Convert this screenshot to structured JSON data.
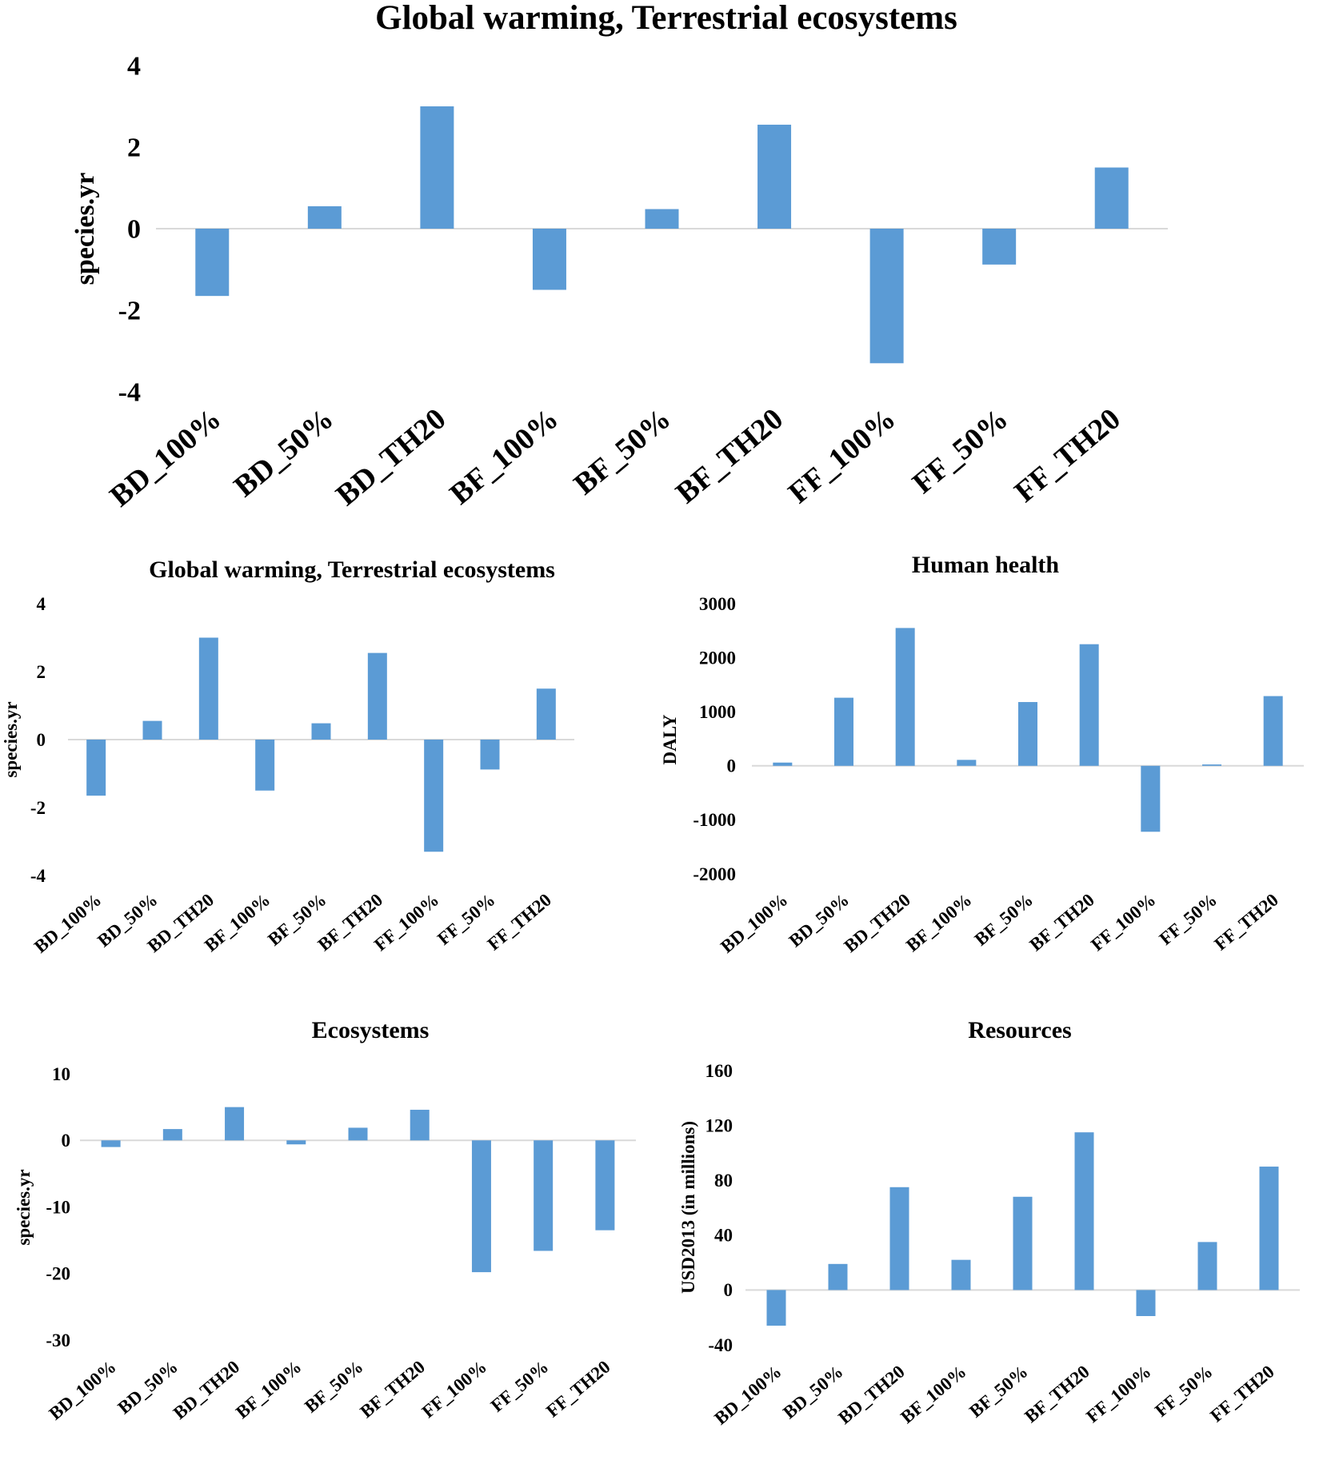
{
  "colors": {
    "bar": "#5b9bd5",
    "axis_line": "#d9d9d9",
    "text": "#000000",
    "background": "#ffffff"
  },
  "chart_data": [
    {
      "type": "bar",
      "title": "Global warming, Terrestrial ecosystems",
      "xlabel": "",
      "ylabel": "species.yr",
      "categories": [
        "BD_100%",
        "BD_50%",
        "BD_TH20",
        "BF_100%",
        "BF_50%",
        "BF_TH20",
        "FF_100%",
        "FF_50%",
        "FF_TH20"
      ],
      "values": [
        -1.65,
        0.55,
        3.0,
        -1.5,
        0.48,
        2.55,
        -3.3,
        -0.88,
        1.5
      ],
      "ylim": [
        -4,
        4
      ],
      "yticks": [
        4,
        2,
        0,
        -2,
        -4
      ],
      "grid": false,
      "legend": "none"
    },
    {
      "type": "bar",
      "title": "Global warming, Terrestrial ecosystems",
      "xlabel": "",
      "ylabel": "species.yr",
      "categories": [
        "BD_100%",
        "BD_50%",
        "BD_TH20",
        "BF_100%",
        "BF_50%",
        "BF_TH20",
        "FF_100%",
        "FF_50%",
        "FF_TH20"
      ],
      "values": [
        -1.65,
        0.55,
        3.0,
        -1.5,
        0.48,
        2.55,
        -3.3,
        -0.88,
        1.5
      ],
      "ylim": [
        -4,
        4
      ],
      "yticks": [
        4,
        2,
        0,
        -2,
        -4
      ],
      "grid": false,
      "legend": "none"
    },
    {
      "type": "bar",
      "title": "Human health",
      "xlabel": "",
      "ylabel": "DALY",
      "categories": [
        "BD_100%",
        "BD_50%",
        "BD_TH20",
        "BF_100%",
        "BF_50%",
        "BF_TH20",
        "FF_100%",
        "FF_50%",
        "FF_TH20"
      ],
      "values": [
        60,
        1260,
        2550,
        110,
        1180,
        2250,
        -1220,
        25,
        1290
      ],
      "ylim": [
        -2000,
        3000
      ],
      "yticks": [
        3000,
        2000,
        1000,
        0,
        -1000,
        -2000
      ],
      "grid": false,
      "legend": "none"
    },
    {
      "type": "bar",
      "title": "Ecosystems",
      "xlabel": "",
      "ylabel": "species.yr",
      "categories": [
        "BD_100%",
        "BD_50%",
        "BD_TH20",
        "BF_100%",
        "BF_50%",
        "BF_TH20",
        "FF_100%",
        "FF_50%",
        "FF_TH20"
      ],
      "values": [
        -1.0,
        1.7,
        5.0,
        -0.6,
        1.9,
        4.6,
        -19.8,
        -16.6,
        -13.5
      ],
      "ylim": [
        -30,
        10
      ],
      "yticks": [
        10,
        0,
        -10,
        -20,
        -30
      ],
      "grid": false,
      "legend": "none"
    },
    {
      "type": "bar",
      "title": "Resources",
      "xlabel": "",
      "ylabel": "USD2013 (in millions)",
      "categories": [
        "BD_100%",
        "BD_50%",
        "BD_TH20",
        "BF_100%",
        "BF_50%",
        "BF_TH20",
        "FF_100%",
        "FF_50%",
        "FF_TH20"
      ],
      "values": [
        -26,
        19,
        75,
        22,
        68,
        115,
        -19,
        35,
        90
      ],
      "ylim": [
        -40,
        160
      ],
      "yticks": [
        160,
        120,
        80,
        40,
        0,
        -40
      ],
      "grid": false,
      "legend": "none"
    }
  ]
}
